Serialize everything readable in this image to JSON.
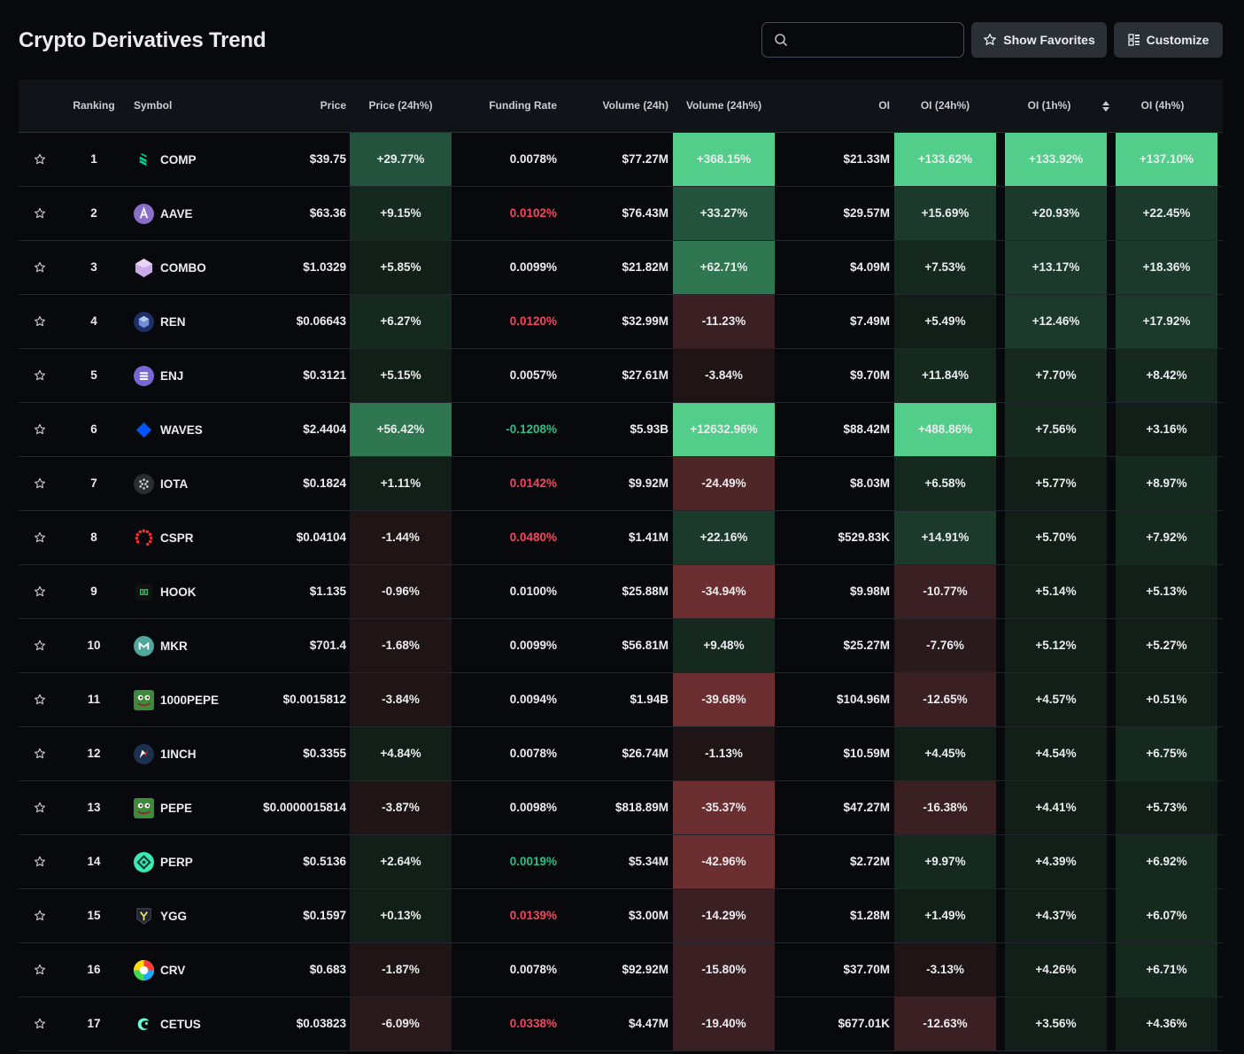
{
  "header": {
    "title": "Crypto Derivatives Trend",
    "search": {
      "value": "",
      "placeholder": ""
    },
    "show_favorites_label": "Show Favorites",
    "customize_label": "Customize"
  },
  "table": {
    "columns": {
      "ranking": "Ranking",
      "symbol": "Symbol",
      "price": "Price",
      "price_24h": "Price (24h%)",
      "funding": "Funding Rate",
      "volume": "Volume (24h)",
      "volume_24h": "Volume (24h%)",
      "oi": "OI",
      "oi_24h": "OI (24h%)",
      "oi_1h": "OI (1h%)",
      "oi_4h": "OI (4h%)"
    },
    "sorted_column": "oi_1h",
    "colors": {
      "positive_max": "#52cd8a",
      "negative_max": "#7a3535",
      "funding_positive": "#f6465d",
      "funding_negative": "#2ebd85",
      "background": "#07090c"
    },
    "rows": [
      {
        "rank": "1",
        "symbol": "COMP",
        "icon": "comp-icon",
        "price": "$39.75",
        "price_24h": "+29.77%",
        "funding": "0.0078%",
        "funding_color": "white",
        "volume": "$77.27M",
        "volume_24h": "+368.15%",
        "oi": "$21.33M",
        "oi_24h": "+133.62%",
        "oi_1h": "+133.92%",
        "oi_4h": "+137.10%"
      },
      {
        "rank": "2",
        "symbol": "AAVE",
        "icon": "aave-icon",
        "price": "$63.36",
        "price_24h": "+9.15%",
        "funding": "0.0102%",
        "funding_color": "red",
        "volume": "$76.43M",
        "volume_24h": "+33.27%",
        "oi": "$29.57M",
        "oi_24h": "+15.69%",
        "oi_1h": "+20.93%",
        "oi_4h": "+22.45%"
      },
      {
        "rank": "3",
        "symbol": "COMBO",
        "icon": "combo-icon",
        "price": "$1.0329",
        "price_24h": "+5.85%",
        "funding": "0.0099%",
        "funding_color": "white",
        "volume": "$21.82M",
        "volume_24h": "+62.71%",
        "oi": "$4.09M",
        "oi_24h": "+7.53%",
        "oi_1h": "+13.17%",
        "oi_4h": "+18.36%"
      },
      {
        "rank": "4",
        "symbol": "REN",
        "icon": "ren-icon",
        "price": "$0.06643",
        "price_24h": "+6.27%",
        "funding": "0.0120%",
        "funding_color": "red",
        "volume": "$32.99M",
        "volume_24h": "-11.23%",
        "oi": "$7.49M",
        "oi_24h": "+5.49%",
        "oi_1h": "+12.46%",
        "oi_4h": "+17.92%"
      },
      {
        "rank": "5",
        "symbol": "ENJ",
        "icon": "enj-icon",
        "price": "$0.3121",
        "price_24h": "+5.15%",
        "funding": "0.0057%",
        "funding_color": "white",
        "volume": "$27.61M",
        "volume_24h": "-3.84%",
        "oi": "$9.70M",
        "oi_24h": "+11.84%",
        "oi_1h": "+7.70%",
        "oi_4h": "+8.42%"
      },
      {
        "rank": "6",
        "symbol": "WAVES",
        "icon": "waves-icon",
        "price": "$2.4404",
        "price_24h": "+56.42%",
        "funding": "-0.1208%",
        "funding_color": "green",
        "volume": "$5.93B",
        "volume_24h": "+12632.96%",
        "oi": "$88.42M",
        "oi_24h": "+488.86%",
        "oi_1h": "+7.56%",
        "oi_4h": "+3.16%"
      },
      {
        "rank": "7",
        "symbol": "IOTA",
        "icon": "iota-icon",
        "price": "$0.1824",
        "price_24h": "+1.11%",
        "funding": "0.0142%",
        "funding_color": "red",
        "volume": "$9.92M",
        "volume_24h": "-24.49%",
        "oi": "$8.03M",
        "oi_24h": "+6.58%",
        "oi_1h": "+5.77%",
        "oi_4h": "+8.97%"
      },
      {
        "rank": "8",
        "symbol": "CSPR",
        "icon": "cspr-icon",
        "price": "$0.04104",
        "price_24h": "-1.44%",
        "funding": "0.0480%",
        "funding_color": "red",
        "volume": "$1.41M",
        "volume_24h": "+22.16%",
        "oi": "$529.83K",
        "oi_24h": "+14.91%",
        "oi_1h": "+5.70%",
        "oi_4h": "+7.92%"
      },
      {
        "rank": "9",
        "symbol": "HOOK",
        "icon": "hook-icon",
        "price": "$1.135",
        "price_24h": "-0.96%",
        "funding": "0.0100%",
        "funding_color": "white",
        "volume": "$25.88M",
        "volume_24h": "-34.94%",
        "oi": "$9.98M",
        "oi_24h": "-10.77%",
        "oi_1h": "+5.14%",
        "oi_4h": "+5.13%"
      },
      {
        "rank": "10",
        "symbol": "MKR",
        "icon": "mkr-icon",
        "price": "$701.4",
        "price_24h": "-1.68%",
        "funding": "0.0099%",
        "funding_color": "white",
        "volume": "$56.81M",
        "volume_24h": "+9.48%",
        "oi": "$25.27M",
        "oi_24h": "-7.76%",
        "oi_1h": "+5.12%",
        "oi_4h": "+5.27%"
      },
      {
        "rank": "11",
        "symbol": "1000PEPE",
        "icon": "pepe-icon",
        "price": "$0.0015812",
        "price_24h": "-3.84%",
        "funding": "0.0094%",
        "funding_color": "white",
        "volume": "$1.94B",
        "volume_24h": "-39.68%",
        "oi": "$104.96M",
        "oi_24h": "-12.65%",
        "oi_1h": "+4.57%",
        "oi_4h": "+0.51%"
      },
      {
        "rank": "12",
        "symbol": "1INCH",
        "icon": "1inch-icon",
        "price": "$0.3355",
        "price_24h": "+4.84%",
        "funding": "0.0078%",
        "funding_color": "white",
        "volume": "$26.74M",
        "volume_24h": "-1.13%",
        "oi": "$10.59M",
        "oi_24h": "+4.45%",
        "oi_1h": "+4.54%",
        "oi_4h": "+6.75%"
      },
      {
        "rank": "13",
        "symbol": "PEPE",
        "icon": "pepe-icon",
        "price": "$0.0000015814",
        "price_24h": "-3.87%",
        "funding": "0.0098%",
        "funding_color": "white",
        "volume": "$818.89M",
        "volume_24h": "-35.37%",
        "oi": "$47.27M",
        "oi_24h": "-16.38%",
        "oi_1h": "+4.41%",
        "oi_4h": "+5.73%"
      },
      {
        "rank": "14",
        "symbol": "PERP",
        "icon": "perp-icon",
        "price": "$0.5136",
        "price_24h": "+2.64%",
        "funding": "0.0019%",
        "funding_color": "green",
        "volume": "$5.34M",
        "volume_24h": "-42.96%",
        "oi": "$2.72M",
        "oi_24h": "+9.97%",
        "oi_1h": "+4.39%",
        "oi_4h": "+6.92%"
      },
      {
        "rank": "15",
        "symbol": "YGG",
        "icon": "ygg-icon",
        "price": "$0.1597",
        "price_24h": "+0.13%",
        "funding": "0.0139%",
        "funding_color": "red",
        "volume": "$3.00M",
        "volume_24h": "-14.29%",
        "oi": "$1.28M",
        "oi_24h": "+1.49%",
        "oi_1h": "+4.37%",
        "oi_4h": "+6.07%"
      },
      {
        "rank": "16",
        "symbol": "CRV",
        "icon": "crv-icon",
        "price": "$0.683",
        "price_24h": "-1.87%",
        "funding": "0.0078%",
        "funding_color": "white",
        "volume": "$92.92M",
        "volume_24h": "-15.80%",
        "oi": "$37.70M",
        "oi_24h": "-3.13%",
        "oi_1h": "+4.26%",
        "oi_4h": "+6.71%"
      },
      {
        "rank": "17",
        "symbol": "CETUS",
        "icon": "cetus-icon",
        "price": "$0.03823",
        "price_24h": "-6.09%",
        "funding": "0.0338%",
        "funding_color": "red",
        "volume": "$4.47M",
        "volume_24h": "-19.40%",
        "oi": "$677.01K",
        "oi_24h": "-12.63%",
        "oi_1h": "+3.56%",
        "oi_4h": "+4.36%"
      }
    ]
  }
}
